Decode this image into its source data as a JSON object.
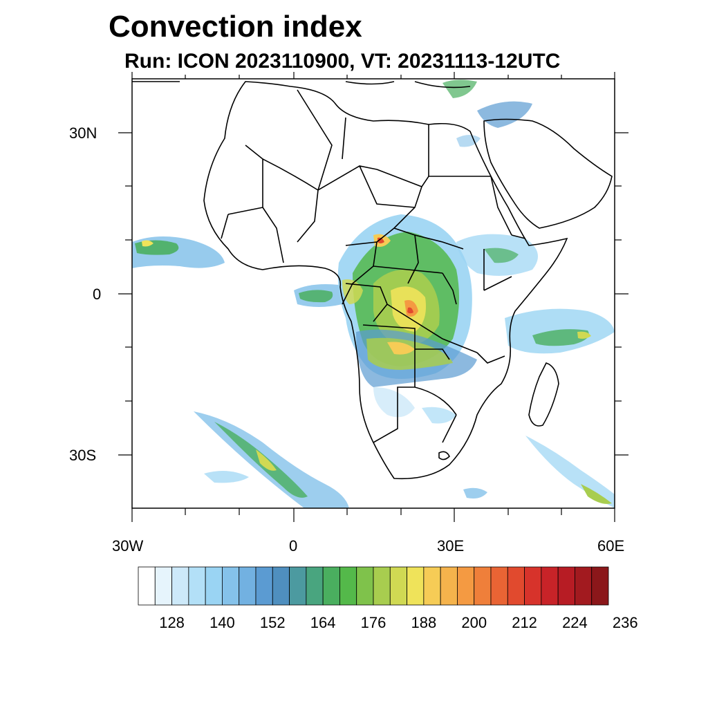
{
  "title": "Convection index",
  "subtitle": "Run: ICON 2023110900,  VT: 20231113-12UTC",
  "axes": {
    "lat_labels": [
      "30N",
      "0",
      "30S"
    ],
    "lon_labels": [
      "30W",
      "0",
      "30E",
      "60E"
    ]
  },
  "colorbar": {
    "labels": [
      "128",
      "140",
      "152",
      "164",
      "176",
      "188",
      "200",
      "212",
      "224",
      "236"
    ],
    "colors": [
      "#ffffff",
      "#e6f4fc",
      "#cde9f9",
      "#b3e0f7",
      "#9ad4f3",
      "#85c2ea",
      "#72b1e1",
      "#5b9bd2",
      "#4f8fbf",
      "#4c9aa0",
      "#49a57f",
      "#4aaf5f",
      "#54b94a",
      "#7fc24b",
      "#a8cd4f",
      "#d0d953",
      "#efe35a",
      "#f6cc56",
      "#f5b34c",
      "#f49a42",
      "#ef7f3a",
      "#e96434",
      "#e14a2e",
      "#d7332b",
      "#c82328",
      "#b71c24",
      "#a21a1f",
      "#8b171a"
    ]
  },
  "map": {
    "region": "Africa",
    "lon_range": [
      -30,
      60
    ],
    "lat_range": [
      -40,
      40
    ],
    "field": "Convection index"
  }
}
